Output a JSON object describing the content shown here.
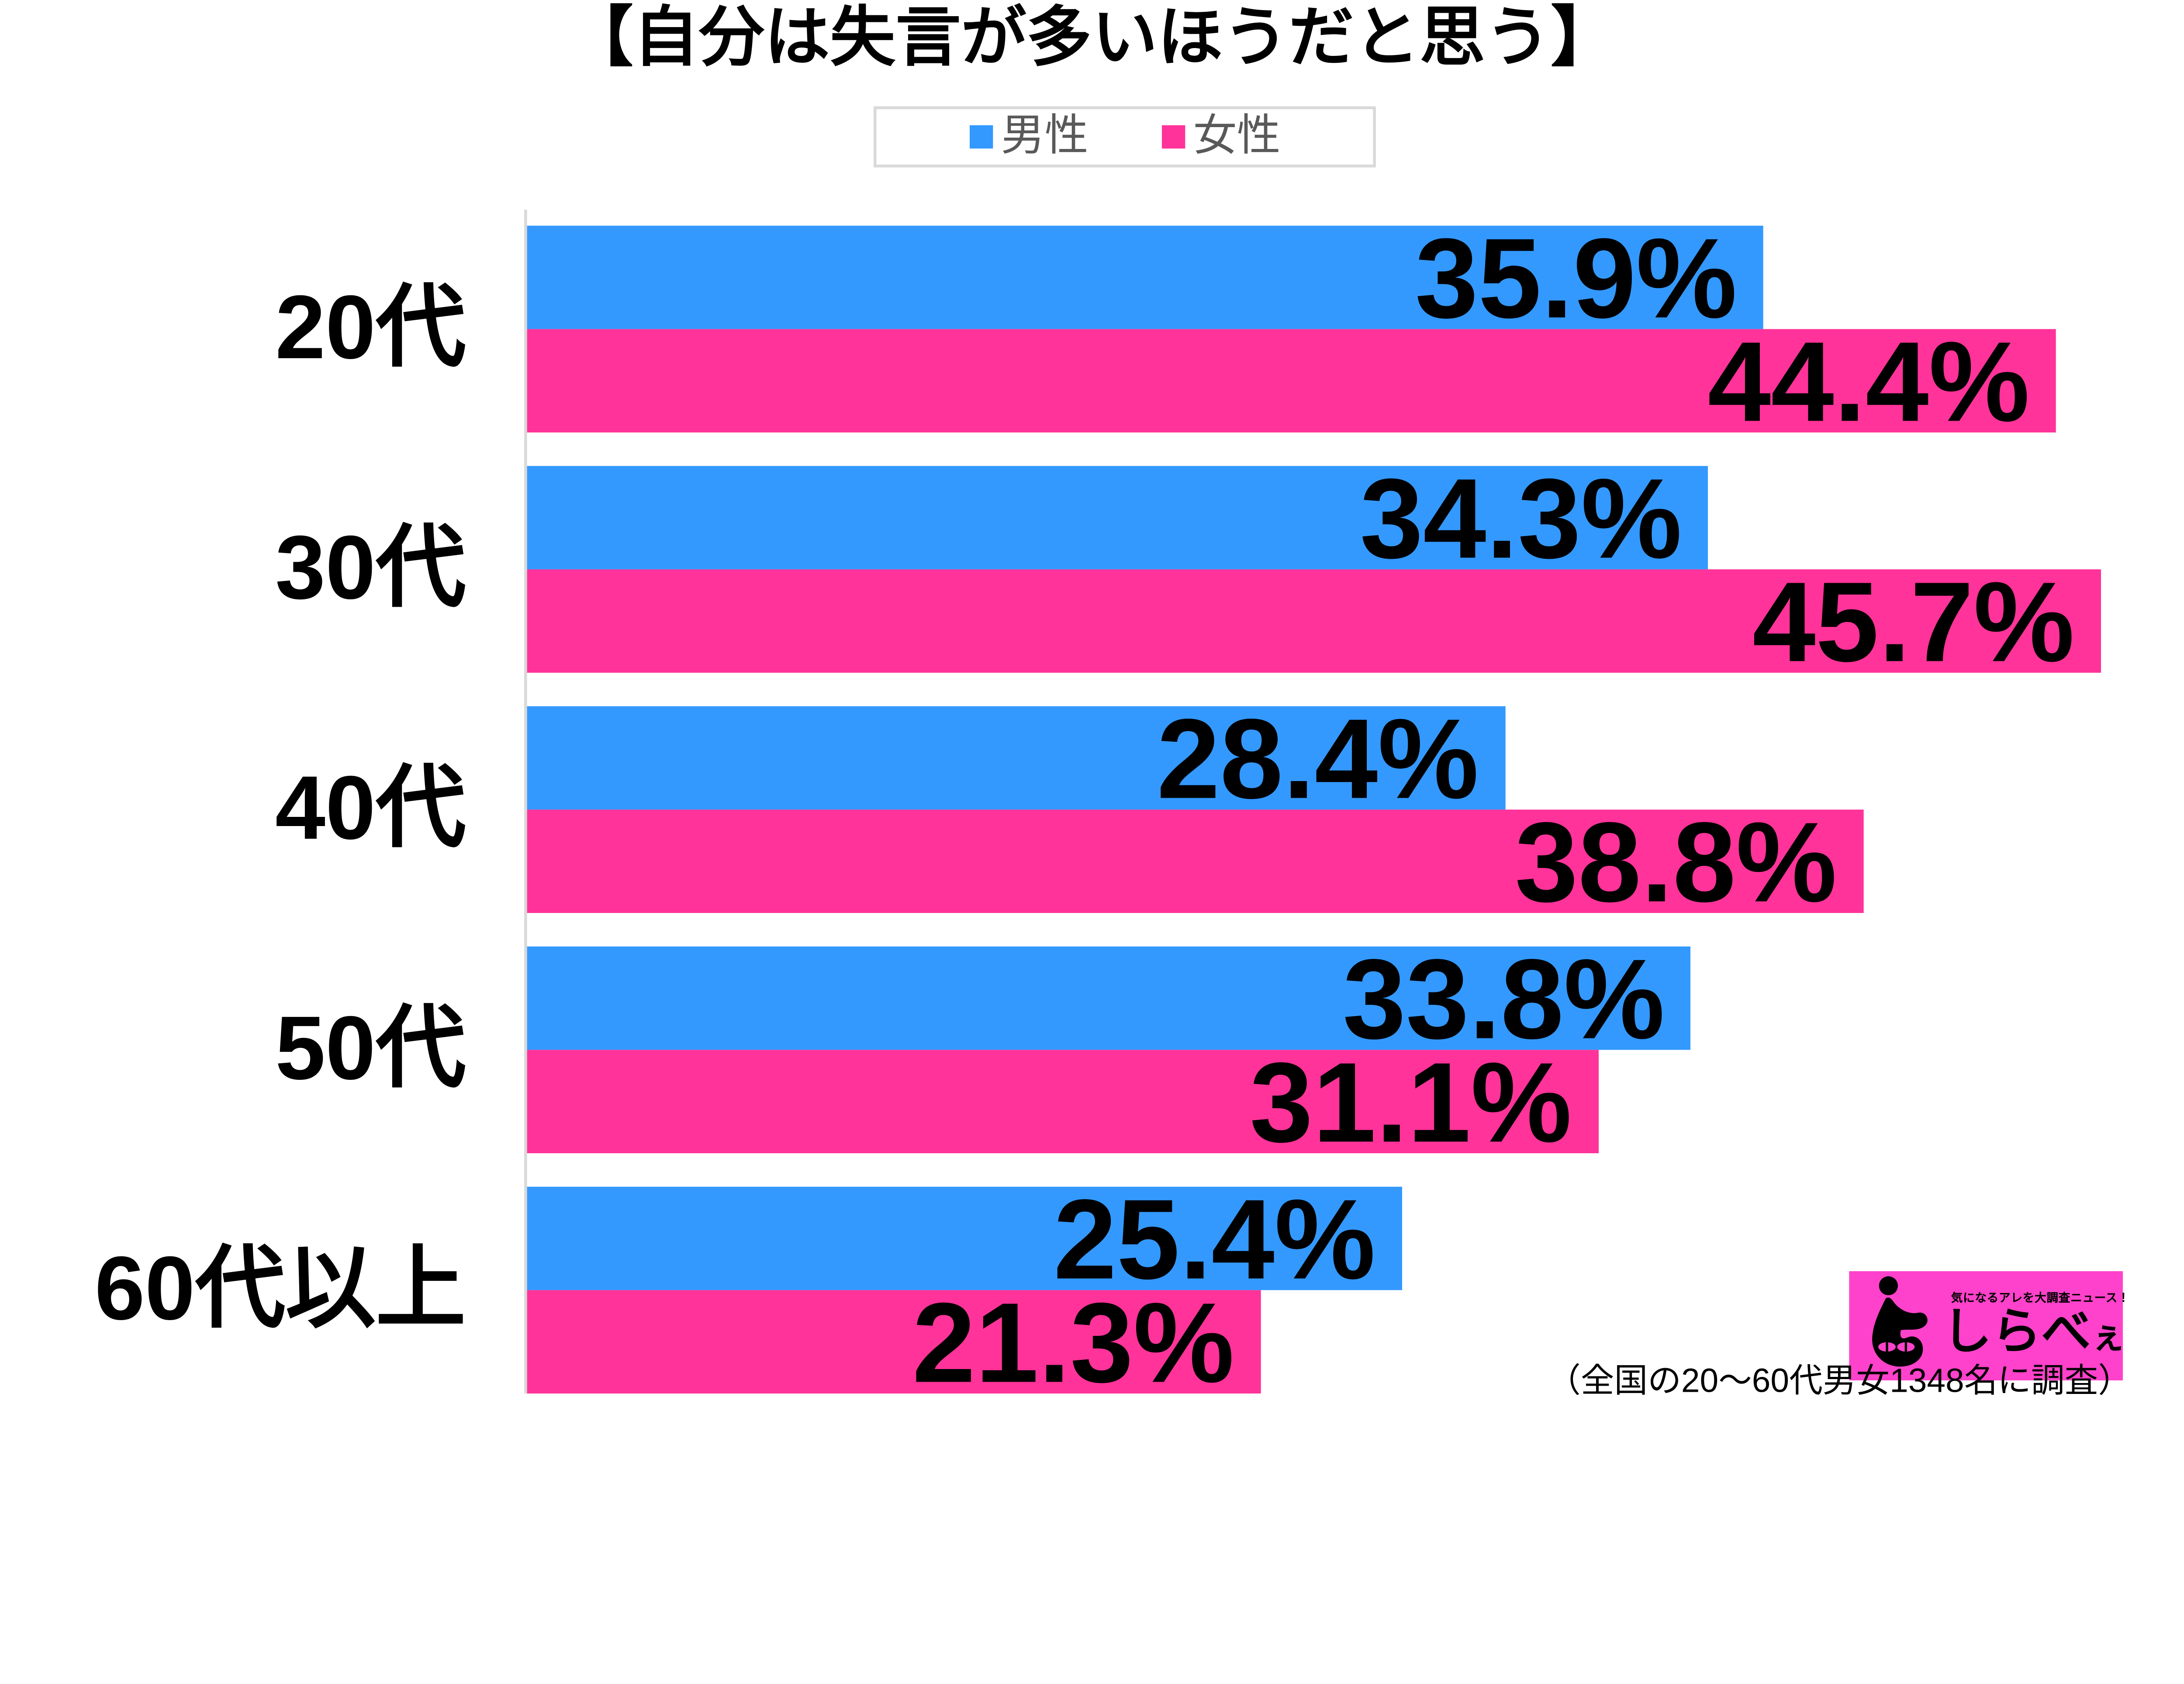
{
  "title": "【自分は失言が多いほうだと思う】",
  "chart_data": {
    "type": "bar",
    "orientation": "horizontal",
    "title": "【自分は失言が多いほうだと思う】",
    "categories": [
      "20代",
      "30代",
      "40代",
      "50代",
      "60代以上"
    ],
    "series": [
      {
        "name": "男性",
        "color": "#3399FF",
        "values": [
          35.9,
          34.3,
          28.4,
          33.8,
          25.4
        ]
      },
      {
        "name": "女性",
        "color": "#FF3399",
        "values": [
          44.4,
          45.7,
          38.8,
          31.1,
          21.3
        ]
      }
    ],
    "value_suffix": "%",
    "xlim": [
      0,
      48
    ],
    "grid": false,
    "legend_position": "top-center",
    "data_labels": "inside-end",
    "axis_line_color": "#D9D9D9"
  },
  "footnote": "（全国の20〜60代男女1348名に調査）",
  "logo": {
    "tagline": "気になるアレを大調査ニュース！",
    "brand_main": "しらべ",
    "brand_small": "ぇ",
    "bg_color": "#FF42CB"
  },
  "colors": {
    "male": "#3399FF",
    "female": "#FF3399",
    "axis": "#D9D9D9",
    "legend_text": "#595959",
    "label_text": "#000000",
    "background": "#FFFFFF"
  }
}
